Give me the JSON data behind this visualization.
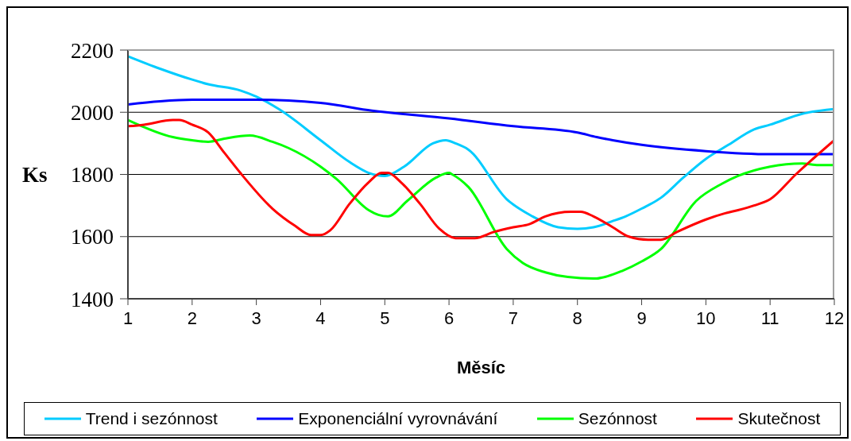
{
  "chart_data": {
    "type": "line",
    "xlabel": "Měsíc",
    "ylabel": "Ks",
    "xlim": [
      1,
      12
    ],
    "xticks": [
      1,
      2,
      3,
      4,
      5,
      6,
      7,
      8,
      9,
      10,
      11,
      12
    ],
    "ylim": [
      1400,
      2200
    ],
    "yticks": [
      1400,
      1600,
      1800,
      2000,
      2200
    ],
    "grid": "y",
    "legend": "bottom",
    "marker": "none",
    "line_style": "solid",
    "series": [
      {
        "name": "Trend i sezónnost",
        "color": "#00ccff",
        "x": [
          1,
          1.5,
          2,
          2.25,
          2.75,
          3,
          3.35,
          4,
          4.45,
          4.75,
          5,
          5.3,
          5.75,
          5.95,
          6.1,
          6.3,
          6.9,
          7.3,
          7.7,
          8,
          8.25,
          8.55,
          8.75,
          9,
          9.3,
          9.65,
          10,
          10.35,
          10.75,
          11,
          11.5,
          12
        ],
        "values": [
          2180,
          2140,
          2105,
          2090,
          2070,
          2050,
          2010,
          1910,
          1840,
          1805,
          1795,
          1825,
          1900,
          1910,
          1900,
          1880,
          1720,
          1665,
          1630,
          1625,
          1630,
          1650,
          1665,
          1690,
          1725,
          1790,
          1850,
          1895,
          1945,
          1960,
          1995,
          2010
        ]
      },
      {
        "name": "Exponenciální vyrovnávání",
        "color": "#0000ff",
        "x": [
          1,
          1.5,
          2,
          3,
          4,
          4.8,
          6,
          7,
          8,
          8.3,
          8.55,
          9,
          10,
          11,
          12
        ],
        "values": [
          2025,
          2035,
          2040,
          2040,
          2030,
          2005,
          1980,
          1955,
          1935,
          1920,
          1910,
          1895,
          1875,
          1865,
          1865
        ]
      },
      {
        "name": "Sezónnost",
        "color": "#00ff00",
        "x": [
          1,
          1.7,
          2,
          2.25,
          2.5,
          2.9,
          3.25,
          3.5,
          4,
          4.25,
          4.75,
          4.9,
          5.05,
          5.35,
          5.8,
          6,
          6.05,
          6.3,
          6.9,
          7.15,
          7.5,
          7.85,
          8.25,
          8.7,
          9,
          9.3,
          9.85,
          10.25,
          10.5,
          11,
          11.5,
          11.75,
          12
        ],
        "values": [
          1975,
          1920,
          1910,
          1905,
          1915,
          1925,
          1905,
          1885,
          1825,
          1785,
          1685,
          1670,
          1665,
          1715,
          1790,
          1805,
          1800,
          1760,
          1560,
          1515,
          1485,
          1470,
          1465,
          1490,
          1520,
          1560,
          1715,
          1770,
          1795,
          1825,
          1835,
          1830,
          1830
        ]
      },
      {
        "name": "Skutečnost",
        "color": "#ff0000",
        "x": [
          1,
          1.25,
          1.7,
          1.8,
          2,
          2.25,
          2.5,
          2.75,
          3.25,
          3.6,
          3.85,
          4,
          4.15,
          4.45,
          4.75,
          4.95,
          5.05,
          5.25,
          5.55,
          5.85,
          6.1,
          6.4,
          6.7,
          7,
          7.25,
          7.5,
          7.9,
          8.05,
          8.25,
          8.55,
          8.8,
          9.1,
          9.3,
          9.55,
          10,
          10.3,
          10.5,
          10.75,
          11,
          11.4,
          12
        ],
        "values": [
          1955,
          1960,
          1975,
          1975,
          1960,
          1935,
          1870,
          1805,
          1690,
          1635,
          1605,
          1605,
          1620,
          1705,
          1775,
          1805,
          1805,
          1775,
          1705,
          1625,
          1595,
          1595,
          1615,
          1630,
          1640,
          1665,
          1680,
          1680,
          1665,
          1630,
          1600,
          1590,
          1590,
          1615,
          1655,
          1675,
          1685,
          1700,
          1720,
          1800,
          1910
        ]
      }
    ]
  }
}
